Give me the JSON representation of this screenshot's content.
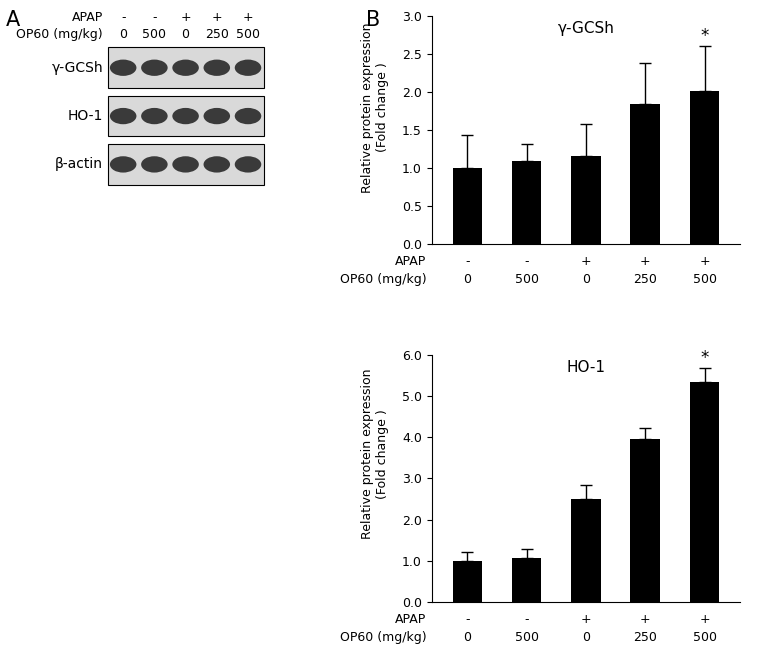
{
  "panel_labels": [
    "A",
    "B"
  ],
  "blot": {
    "conditions": [
      {
        "label": "APAP",
        "values": [
          "-",
          "-",
          "+",
          "+",
          "+"
        ]
      },
      {
        "label": "OP60 (mg/kg)",
        "values": [
          "0",
          "500",
          "0",
          "250",
          "500"
        ]
      }
    ],
    "rows": [
      "γ-GCSh",
      "HO-1",
      "β-actin"
    ]
  },
  "chart_data": [
    {
      "type": "bar",
      "title": "γ-GCSh",
      "y_label": "Relative protein expression\n(Fold change )",
      "x_table": [
        {
          "label": "APAP",
          "values": [
            "-",
            "-",
            "+",
            "+",
            "+"
          ]
        },
        {
          "label": "OP60 (mg/kg)",
          "values": [
            "0",
            "500",
            "0",
            "250",
            "500"
          ]
        }
      ],
      "values": [
        1.0,
        1.09,
        1.16,
        1.84,
        2.01
      ],
      "error": [
        0.44,
        0.23,
        0.42,
        0.55,
        0.6
      ],
      "color": "#000000",
      "annotations": [
        {
          "x": 4,
          "text": "*"
        }
      ],
      "ylim": [
        0,
        3
      ],
      "yticks": [
        {
          "value": 0,
          "label": "0.0"
        },
        0.5,
        {
          "value": 1,
          "label": "1.0"
        },
        1.5,
        {
          "value": 2,
          "label": "2.0"
        },
        2.5,
        {
          "value": 3,
          "label": "3.0"
        }
      ],
      "grid": false
    },
    {
      "type": "bar",
      "title": "HO-1",
      "y_label": "Relative protein expression\n(Fold change )",
      "x_table": [
        {
          "label": "APAP",
          "values": [
            "-",
            "-",
            "+",
            "+",
            "+"
          ]
        },
        {
          "label": "OP60 (mg/kg)",
          "values": [
            "0",
            "500",
            "0",
            "250",
            "500"
          ]
        }
      ],
      "values": [
        1.0,
        1.08,
        2.5,
        3.95,
        5.35
      ],
      "error": [
        0.22,
        0.2,
        0.35,
        0.28,
        0.33
      ],
      "color": "#000000",
      "annotations": [
        {
          "x": 4,
          "text": "*"
        }
      ],
      "ylim": [
        0,
        6
      ],
      "yticks": [
        {
          "value": 0,
          "label": "0.0"
        },
        {
          "value": 1,
          "label": "1.0"
        },
        {
          "value": 2,
          "label": "2.0"
        },
        {
          "value": 3,
          "label": "3.0"
        },
        {
          "value": 4,
          "label": "4.0"
        },
        {
          "value": 5,
          "label": "5.0"
        },
        {
          "value": 6,
          "label": "6.0"
        }
      ],
      "grid": false
    }
  ]
}
